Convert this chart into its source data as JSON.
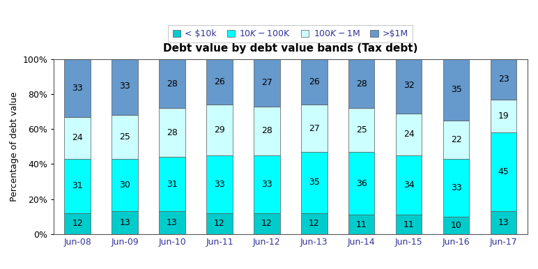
{
  "title": "Debt value by debt value bands (Tax debt)",
  "ylabel": "Percentage of debt value",
  "categories": [
    "Jun-08",
    "Jun-09",
    "Jun-10",
    "Jun-11",
    "Jun-12",
    "Jun-13",
    "Jun-14",
    "Jun-15",
    "Jun-16",
    "Jun-17"
  ],
  "series": {
    "<$10k": [
      12,
      13,
      13,
      12,
      12,
      12,
      11,
      11,
      10,
      13
    ],
    "$10K-$100K": [
      31,
      30,
      31,
      33,
      33,
      35,
      36,
      34,
      33,
      45
    ],
    "$100K-$1M": [
      24,
      25,
      28,
      29,
      28,
      27,
      25,
      24,
      22,
      19
    ],
    ">$1M": [
      33,
      33,
      28,
      26,
      27,
      26,
      28,
      32,
      35,
      23
    ]
  },
  "colors": {
    "<$10k": "#00CCCC",
    "$10K-$100K": "#00FFFF",
    "$100K-$1M": "#CCFFFF",
    ">$1M": "#6699CC"
  },
  "legend_labels": [
    "< $10k",
    "$10K-$100K",
    "$100K-$1M",
    ">$1M"
  ],
  "legend_keys": [
    "<$10k",
    "$10K-$100K",
    "$100K-$1M",
    ">$1M"
  ],
  "ylim": [
    0,
    100
  ],
  "yticks": [
    0,
    20,
    40,
    60,
    80,
    100
  ],
  "ytick_labels": [
    "0%",
    "20%",
    "40%",
    "60%",
    "80%",
    "100%"
  ],
  "background_color": "#FFFFFF",
  "plot_bg_color": "#FFFFFF",
  "bar_width": 0.55,
  "title_fontsize": 11,
  "label_fontsize": 9,
  "tick_fontsize": 9,
  "legend_fontsize": 9
}
